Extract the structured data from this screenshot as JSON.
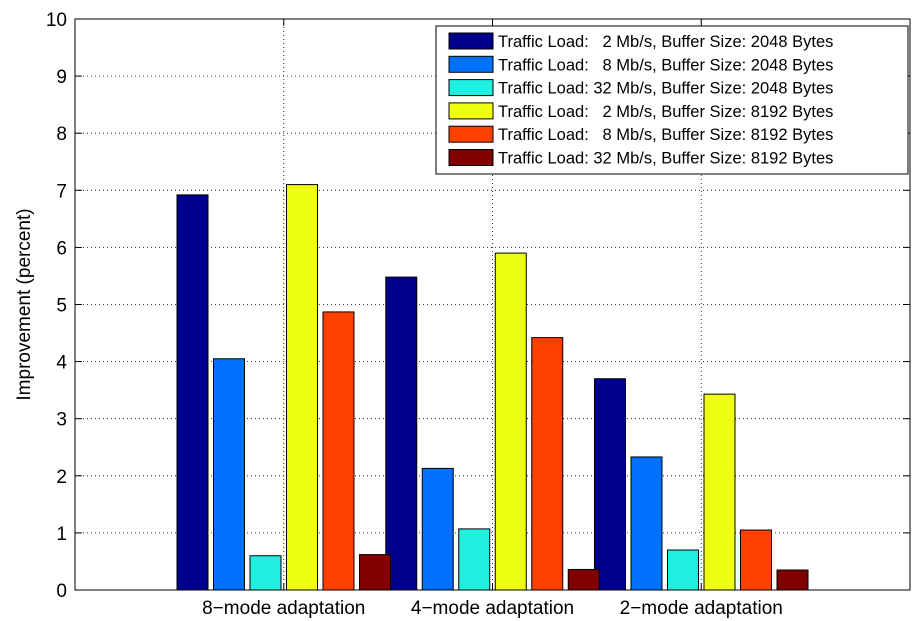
{
  "chart_data": {
    "type": "bar",
    "title": "",
    "xlabel": "",
    "ylabel": "Improvement (percent)",
    "ylim": [
      0,
      10
    ],
    "yticks": [
      "0",
      "1",
      "2",
      "3",
      "4",
      "5",
      "6",
      "7",
      "8",
      "9",
      "10"
    ],
    "grid": true,
    "legend_position": "top-right",
    "categories": [
      "8−mode adaptation",
      "4−mode adaptation",
      "2−mode adaptation"
    ],
    "series": [
      {
        "name": "Traffic Load:   2 Mb/s, Buffer Size: 2048 Bytes",
        "color": "#00008F",
        "values": [
          6.92,
          5.48,
          3.7
        ]
      },
      {
        "name": "Traffic Load:   8 Mb/s, Buffer Size: 2048 Bytes",
        "color": "#0070FF",
        "values": [
          4.05,
          2.13,
          2.33
        ]
      },
      {
        "name": "Traffic Load: 32 Mb/s, Buffer Size: 2048 Bytes",
        "color": "#20F0E0",
        "values": [
          0.6,
          1.07,
          0.7
        ]
      },
      {
        "name": "Traffic Load:   2 Mb/s, Buffer Size: 8192 Bytes",
        "color": "#EFFF10",
        "values": [
          7.1,
          5.9,
          3.43
        ]
      },
      {
        "name": "Traffic Load:   8 Mb/s, Buffer Size: 8192 Bytes",
        "color": "#FF4000",
        "values": [
          4.87,
          4.42,
          1.05
        ]
      },
      {
        "name": "Traffic Load: 32 Mb/s, Buffer Size: 8192 Bytes",
        "color": "#800000",
        "values": [
          0.62,
          0.36,
          0.35
        ]
      }
    ]
  }
}
